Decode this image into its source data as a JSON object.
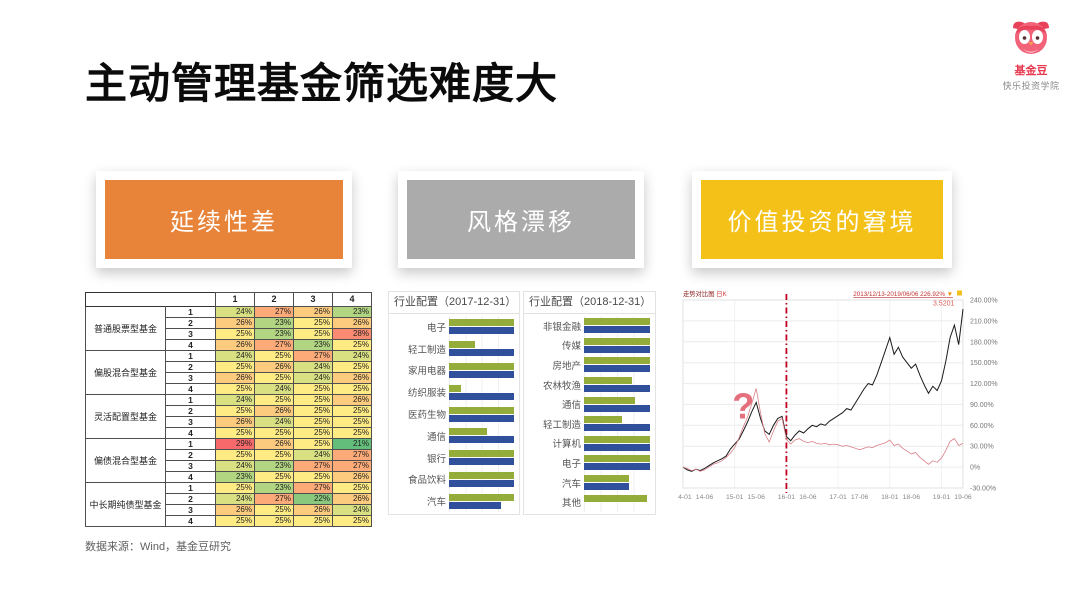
{
  "title": "主动管理基金筛选难度大",
  "brand": {
    "name": "基金豆",
    "tagline": "快乐投资学院",
    "accent": "#e8384f"
  },
  "source_note": "数据来源：Wind，基金豆研究",
  "sections": [
    {
      "header": "延续性差",
      "color": "#e8833a"
    },
    {
      "header": "风格漂移",
      "color": "#ababab"
    },
    {
      "header": "价值投资的窘境",
      "color": "#f3c117"
    }
  ],
  "chart_data": [
    {
      "type": "heatmap",
      "unit": "%",
      "col_headers": [
        "1",
        "2",
        "3",
        "4"
      ],
      "row_numbers": [
        "1",
        "2",
        "3",
        "4"
      ],
      "color_scale": {
        "min": 21,
        "mid": 25,
        "max": 29,
        "min_color": "#63be7b",
        "mid_color": "#ffeb84",
        "max_color": "#f8696b"
      },
      "row_groups": [
        {
          "label": "普通股票型基金",
          "rows": [
            [
              24,
              27,
              26,
              23
            ],
            [
              26,
              23,
              25,
              26
            ],
            [
              25,
              23,
              25,
              28
            ],
            [
              26,
              27,
              23,
              25
            ]
          ]
        },
        {
          "label": "偏股混合型基金",
          "rows": [
            [
              24,
              25,
              27,
              24
            ],
            [
              25,
              26,
              24,
              25
            ],
            [
              26,
              25,
              24,
              26
            ],
            [
              25,
              24,
              25,
              25
            ]
          ]
        },
        {
          "label": "灵活配置型基金",
          "rows": [
            [
              24,
              25,
              25,
              26
            ],
            [
              25,
              26,
              25,
              25
            ],
            [
              26,
              24,
              25,
              25
            ],
            [
              25,
              25,
              25,
              25
            ]
          ]
        },
        {
          "label": "偏债混合型基金",
          "rows": [
            [
              29,
              26,
              25,
              21
            ],
            [
              25,
              25,
              24,
              27
            ],
            [
              24,
              23,
              27,
              27
            ],
            [
              23,
              25,
              25,
              26
            ]
          ]
        },
        {
          "label": "中长期纯债型基金",
          "rows": [
            [
              25,
              23,
              27,
              25
            ],
            [
              24,
              27,
              22,
              26
            ],
            [
              26,
              25,
              26,
              24
            ],
            [
              25,
              25,
              25,
              25
            ]
          ]
        }
      ]
    },
    {
      "type": "bar",
      "title": "行业配置（2017-12-31）",
      "orientation": "horizontal",
      "values_normalized": true,
      "categories": [
        "电子",
        "轻工制造",
        "家用电器",
        "纺织服装",
        "医药生物",
        "通信",
        "银行",
        "食品饮料",
        "汽车"
      ],
      "series": [
        {
          "name": "green",
          "color": "#94ad3a",
          "values": [
            1.0,
            0.4,
            1.0,
            0.18,
            1.0,
            0.58,
            1.0,
            1.0,
            1.0
          ]
        },
        {
          "name": "blue",
          "color": "#30509c",
          "values": [
            1.0,
            1.0,
            1.0,
            1.0,
            1.0,
            1.0,
            1.0,
            1.0,
            0.8
          ]
        }
      ]
    },
    {
      "type": "bar",
      "title": "行业配置（2018-12-31）",
      "orientation": "horizontal",
      "values_normalized": true,
      "categories": [
        "非银金融",
        "传媒",
        "房地产",
        "农林牧渔",
        "通信",
        "轻工制造",
        "计算机",
        "电子",
        "汽车",
        "其他"
      ],
      "series": [
        {
          "name": "green",
          "color": "#94ad3a",
          "values": [
            1.0,
            1.0,
            1.0,
            0.72,
            0.78,
            0.58,
            1.0,
            1.0,
            0.68,
            0.95
          ]
        },
        {
          "name": "blue",
          "color": "#30509c",
          "values": [
            1.0,
            1.0,
            1.0,
            1.0,
            1.0,
            1.0,
            1.0,
            1.0,
            0.68,
            0.0
          ]
        }
      ]
    },
    {
      "type": "line",
      "title": "走势对比图",
      "mode": "日K",
      "range_label": "2013/12/13-2019/06/06 226.92%",
      "end_value_label": "3.5201",
      "y_ticks": [
        "240.00%",
        "210.00%",
        "180.00%",
        "150.00%",
        "120.00%",
        "90.00%",
        "60.00%",
        "30.00%",
        "0%",
        "-30.00%"
      ],
      "ylim": [
        -30,
        240
      ],
      "x_labels": [
        "14-01",
        "14-06",
        "15-01",
        "15-06",
        "16-01",
        "16-06",
        "17-01",
        "17-06",
        "18-01",
        "18-06",
        "19-01",
        "19-06"
      ],
      "x_label_months": [
        0,
        5,
        12,
        17,
        24,
        29,
        36,
        41,
        48,
        53,
        60,
        65
      ],
      "vline_month": 24,
      "annotation": {
        "text": "?",
        "month": 14,
        "value": 70,
        "color": "#e4707e"
      },
      "series": [
        {
          "name": "black",
          "color": "#1a1a1a",
          "width": 1,
          "values": [
            0,
            -4,
            -6,
            -3,
            -5,
            -2,
            2,
            6,
            9,
            12,
            16,
            26,
            33,
            40,
            52,
            65,
            80,
            93,
            70,
            52,
            47,
            60,
            70,
            73,
            44,
            38,
            46,
            52,
            49,
            55,
            60,
            58,
            62,
            60,
            66,
            70,
            74,
            78,
            84,
            82,
            92,
            102,
            112,
            120,
            118,
            132,
            150,
            168,
            186,
            162,
            172,
            158,
            150,
            142,
            148,
            132,
            118,
            106,
            116,
            110,
            124,
            152,
            186,
            204,
            176,
            227
          ]
        },
        {
          "name": "pink",
          "color": "#d97f88",
          "width": 0.8,
          "values": [
            0,
            -2,
            -5,
            -3,
            -6,
            -4,
            0,
            4,
            6,
            9,
            14,
            20,
            28,
            42,
            58,
            72,
            92,
            113,
            78,
            48,
            36,
            52,
            66,
            70,
            40,
            33,
            39,
            41,
            37,
            35,
            37,
            34,
            33,
            34,
            32,
            33,
            32,
            30,
            31,
            29,
            27,
            25,
            27,
            29,
            28,
            31,
            33,
            35,
            39,
            31,
            33,
            27,
            23,
            19,
            21,
            14,
            9,
            4,
            9,
            7,
            13,
            24,
            37,
            41,
            31,
            34
          ]
        }
      ]
    }
  ]
}
